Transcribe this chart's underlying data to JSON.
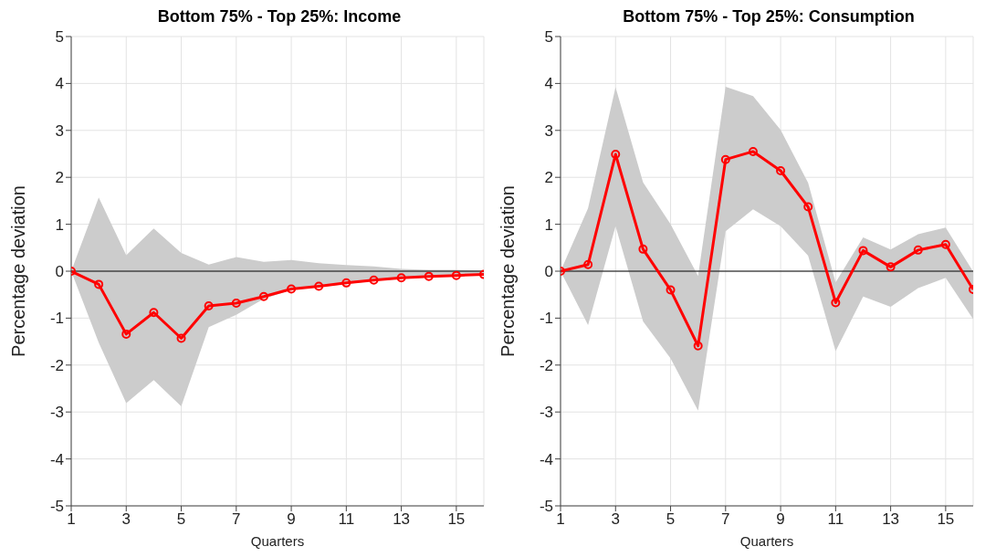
{
  "chart_data": [
    {
      "type": "line",
      "title": "Bottom 75% - Top 25%: Income",
      "xlabel": "Quarters",
      "ylabel": "Percentage deviation",
      "x": [
        1,
        2,
        3,
        4,
        5,
        6,
        7,
        8,
        9,
        10,
        11,
        12,
        13,
        14,
        15,
        16
      ],
      "series": [
        {
          "color": "#ff0000",
          "values": [
            0,
            -0.28,
            -1.34,
            -0.88,
            -1.43,
            -0.74,
            -0.68,
            -0.54,
            -0.38,
            -0.32,
            -0.25,
            -0.19,
            -0.14,
            -0.11,
            -0.09,
            -0.07
          ],
          "lower": [
            0,
            -1.52,
            -2.81,
            -2.32,
            -2.88,
            -1.19,
            -0.93,
            -0.59,
            -0.4,
            -0.34,
            -0.27,
            -0.21,
            -0.16,
            -0.13,
            -0.1,
            -0.08
          ],
          "upper": [
            0,
            1.57,
            0.34,
            0.91,
            0.39,
            0.14,
            0.3,
            0.2,
            0.24,
            0.17,
            0.13,
            0.1,
            0.05,
            0.03,
            0.03,
            0.01
          ]
        }
      ],
      "xlim": [
        1,
        16
      ],
      "xticks": [
        1,
        3,
        5,
        7,
        9,
        11,
        13,
        15
      ],
      "ylim": [
        -5,
        5
      ],
      "yticks": [
        -5,
        -4,
        -3,
        -2,
        -1,
        0,
        1,
        2,
        3,
        4,
        5
      ],
      "grid": true,
      "marker": "circle",
      "line_style": "solid",
      "legend": false,
      "ref_lines": [
        {
          "axis": "y",
          "value": 0,
          "color": "#000000"
        }
      ]
    },
    {
      "type": "line",
      "title": "Bottom 75% - Top 25%: Consumption",
      "xlabel": "Quarters",
      "ylabel": "Percentage deviation",
      "x": [
        1,
        2,
        3,
        4,
        5,
        6,
        7,
        8,
        9,
        10,
        11,
        12,
        13,
        14,
        15,
        16
      ],
      "series": [
        {
          "color": "#ff0000",
          "values": [
            0,
            0.14,
            2.49,
            0.47,
            -0.4,
            -1.59,
            2.38,
            2.55,
            2.14,
            1.37,
            -0.67,
            0.44,
            0.09,
            0.45,
            0.57,
            -0.39
          ],
          "lower": [
            0,
            -1.15,
            0.96,
            -1.07,
            -1.86,
            -2.97,
            0.85,
            1.32,
            0.96,
            0.33,
            -1.7,
            -0.54,
            -0.76,
            -0.36,
            -0.14,
            -1.02
          ],
          "upper": [
            0,
            1.34,
            3.92,
            1.89,
            1,
            -0.1,
            3.93,
            3.73,
            3.01,
            1.88,
            -0.24,
            0.72,
            0.46,
            0.79,
            0.93,
            -0.01
          ]
        }
      ],
      "xlim": [
        1,
        16
      ],
      "xticks": [
        1,
        3,
        5,
        7,
        9,
        11,
        13,
        15
      ],
      "ylim": [
        -5,
        5
      ],
      "yticks": [
        -5,
        -4,
        -3,
        -2,
        -1,
        0,
        1,
        2,
        3,
        4,
        5
      ],
      "grid": true,
      "marker": "circle",
      "line_style": "solid",
      "legend": false,
      "ref_lines": [
        {
          "axis": "y",
          "value": 0,
          "color": "#000000"
        }
      ]
    }
  ]
}
